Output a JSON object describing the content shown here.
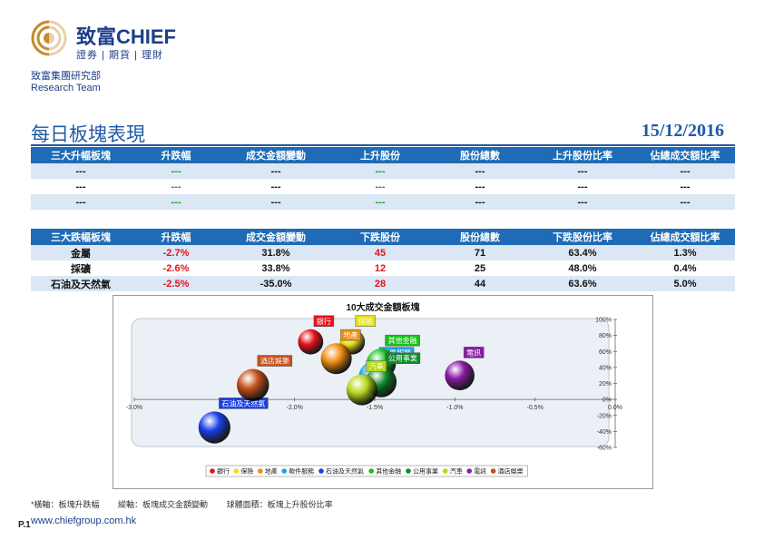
{
  "brand": {
    "name": "致富CHIEF",
    "tagline": "證券 | 期貨 | 理財",
    "dept_cn": "致富集團研究部",
    "dept_en": "Research Team"
  },
  "title": "每日板塊表現",
  "date": "15/12/2016",
  "rise_table": {
    "headers": [
      "三大升幅板塊",
      "升跌幅",
      "成交金額變動",
      "上升股份",
      "股份總數",
      "上升股份比率",
      "佔總成交額比率"
    ],
    "rows": [
      [
        "---",
        "---",
        "---",
        "---",
        "---",
        "---",
        "---"
      ],
      [
        "---",
        "---",
        "---",
        "---",
        "---",
        "---",
        "---"
      ],
      [
        "---",
        "---",
        "---",
        "---",
        "---",
        "---",
        "---"
      ]
    ]
  },
  "fall_table": {
    "headers": [
      "三大跌幅板塊",
      "升跌幅",
      "成交金額變動",
      "下跌股份",
      "股份總數",
      "下跌股份比率",
      "佔總成交額比率"
    ],
    "rows": [
      [
        "金屬",
        "-2.7%",
        "31.8%",
        "45",
        "71",
        "63.4%",
        "1.3%"
      ],
      [
        "採礦",
        "-2.6%",
        "33.8%",
        "12",
        "25",
        "48.0%",
        "0.4%"
      ],
      [
        "石油及天然氣",
        "-2.5%",
        "-35.0%",
        "28",
        "44",
        "63.6%",
        "5.0%"
      ]
    ]
  },
  "chart_data": {
    "type": "scatter",
    "title": "10大成交金額板塊",
    "xlim": [
      -0.03,
      0.0
    ],
    "ylim": [
      -0.6,
      1.0
    ],
    "x_ticks": [
      "-3.0%",
      "-2.0%",
      "-1.5%",
      "-1.0%",
      "-0.5%",
      "0.0%"
    ],
    "x_tick_values": [
      -0.03,
      -0.02,
      -0.015,
      -0.01,
      -0.005,
      0.0
    ],
    "y_ticks": [
      "100%",
      "80%",
      "60%",
      "40%",
      "20%",
      "0%",
      "-20%",
      "-40%",
      "-60%"
    ],
    "y_tick_values": [
      1.0,
      0.8,
      0.6,
      0.4,
      0.2,
      0.0,
      -0.2,
      -0.4,
      -0.6
    ],
    "series": [
      {
        "name": "銀行",
        "x": -0.019,
        "y": 0.72,
        "size": 0.4,
        "color": "#e8121c"
      },
      {
        "name": "保險",
        "x": -0.0164,
        "y": 0.72,
        "size": 0.4,
        "color": "#e7e21a"
      },
      {
        "name": "地產",
        "x": -0.0174,
        "y": 0.51,
        "size": 0.6,
        "color": "#f08c10"
      },
      {
        "name": "軟件服務",
        "x": -0.015,
        "y": 0.28,
        "size": 0.65,
        "color": "#1aa3e8"
      },
      {
        "name": "石油及天然氣",
        "x": -0.025,
        "y": -0.35,
        "size": 0.64,
        "color": "#1a3fe8"
      },
      {
        "name": "其他金融",
        "x": -0.0146,
        "y": 0.45,
        "size": 0.55,
        "color": "#17c21a"
      },
      {
        "name": "公用事業",
        "x": -0.0146,
        "y": 0.22,
        "size": 0.6,
        "color": "#118a2a"
      },
      {
        "name": "汽車",
        "x": -0.0158,
        "y": 0.12,
        "size": 0.6,
        "color": "#b7d81a"
      },
      {
        "name": "電訊",
        "x": -0.0097,
        "y": 0.3,
        "size": 0.55,
        "color": "#8a1aa6"
      },
      {
        "name": "酒店娛樂",
        "x": -0.0226,
        "y": 0.18,
        "size": 0.65,
        "color": "#c4501a"
      }
    ]
  },
  "footnote": {
    "x": "*橫軸：板塊升跌幅",
    "y": "縱軸：板塊成交金額變動",
    "size": "球體面積：板塊上升股份比率"
  },
  "page_num": "P.1",
  "url": "www.chiefgroup.com.hk"
}
